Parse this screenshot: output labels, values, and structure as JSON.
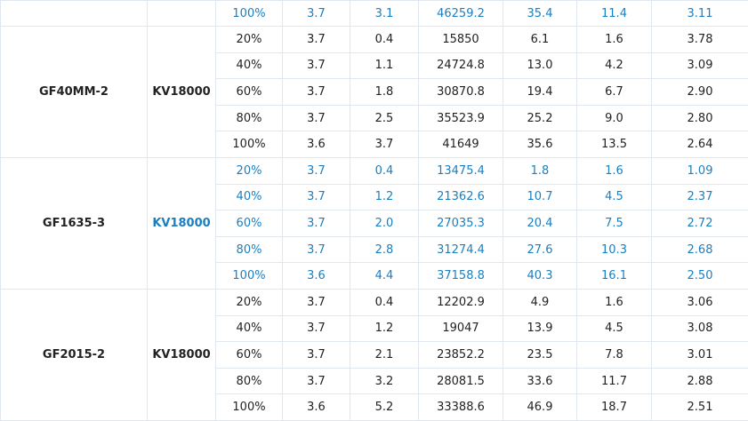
{
  "table": {
    "top_row": {
      "color": "#1a7fc1",
      "cells": [
        "100%",
        "3.7",
        "3.1",
        "46259.2",
        "35.4",
        "11.4",
        "3.11"
      ]
    },
    "groups": [
      {
        "model": "GF40MM-2",
        "motor": "KV18000",
        "color": "#222222",
        "rows": [
          [
            "20%",
            "3.7",
            "0.4",
            "15850",
            "6.1",
            "1.6",
            "3.78"
          ],
          [
            "40%",
            "3.7",
            "1.1",
            "24724.8",
            "13.0",
            "4.2",
            "3.09"
          ],
          [
            "60%",
            "3.7",
            "1.8",
            "30870.8",
            "19.4",
            "6.7",
            "2.90"
          ],
          [
            "80%",
            "3.7",
            "2.5",
            "35523.9",
            "25.2",
            "9.0",
            "2.80"
          ],
          [
            "100%",
            "3.6",
            "3.7",
            "41649",
            "35.6",
            "13.5",
            "2.64"
          ]
        ]
      },
      {
        "model": "GF1635-3",
        "motor": "KV18000",
        "color": "#1a7fc1",
        "rows": [
          [
            "20%",
            "3.7",
            "0.4",
            "13475.4",
            "1.8",
            "1.6",
            "1.09"
          ],
          [
            "40%",
            "3.7",
            "1.2",
            "21362.6",
            "10.7",
            "4.5",
            "2.37"
          ],
          [
            "60%",
            "3.7",
            "2.0",
            "27035.3",
            "20.4",
            "7.5",
            "2.72"
          ],
          [
            "80%",
            "3.7",
            "2.8",
            "31274.4",
            "27.6",
            "10.3",
            "2.68"
          ],
          [
            "100%",
            "3.6",
            "4.4",
            "37158.8",
            "40.3",
            "16.1",
            "2.50"
          ]
        ]
      },
      {
        "model": "GF2015-2",
        "motor": "KV18000",
        "color": "#222222",
        "rows": [
          [
            "20%",
            "3.7",
            "0.4",
            "12202.9",
            "4.9",
            "1.6",
            "3.06"
          ],
          [
            "40%",
            "3.7",
            "1.2",
            "19047",
            "13.9",
            "4.5",
            "3.08"
          ],
          [
            "60%",
            "3.7",
            "2.1",
            "23852.2",
            "23.5",
            "7.8",
            "3.01"
          ],
          [
            "80%",
            "3.7",
            "3.2",
            "28081.5",
            "33.6",
            "11.7",
            "2.88"
          ],
          [
            "100%",
            "3.6",
            "5.2",
            "33388.6",
            "46.9",
            "18.7",
            "2.51"
          ]
        ]
      }
    ]
  }
}
